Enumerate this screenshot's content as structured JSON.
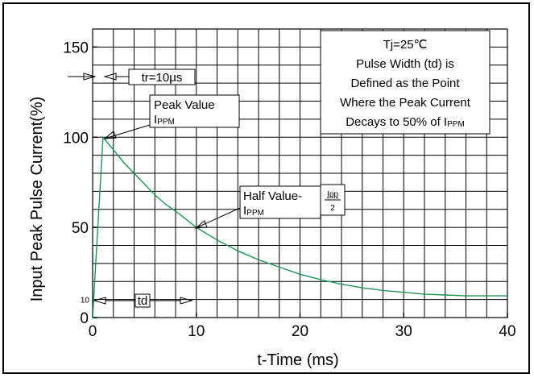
{
  "chart_data": {
    "type": "line",
    "title": "",
    "xlabel": "t-Time (ms)",
    "ylabel": "Input Peak Pulse Current(%)",
    "xlim": [
      0,
      40
    ],
    "ylim": [
      0,
      160
    ],
    "x_ticks": [
      0,
      10,
      20,
      30,
      40
    ],
    "x_tick_labels": [
      "0",
      "10",
      "20",
      "30",
      "40"
    ],
    "y_ticks": [
      0,
      50,
      100,
      150
    ],
    "y_tick_labels": [
      "0",
      "50",
      "100",
      "150"
    ],
    "y_extra_tick": {
      "value": 10,
      "label": "10"
    },
    "grid": true,
    "grid_minor_x_step": 2,
    "grid_minor_y_step": 10,
    "series": [
      {
        "color": "#1a9850",
        "x": [
          0,
          1,
          2,
          3,
          4,
          5,
          6,
          7,
          8,
          10,
          12,
          14,
          16,
          18,
          20,
          22,
          24,
          26,
          28,
          30,
          32,
          34,
          36,
          38,
          40
        ],
        "values": [
          0,
          100,
          93,
          86,
          80,
          74,
          68,
          63,
          59,
          50,
          43,
          37,
          32,
          28,
          24,
          21,
          18.5,
          16.5,
          15,
          14,
          13,
          12.5,
          12,
          12,
          12
        ]
      }
    ],
    "annotations": {
      "tr_label": "tr=10μs",
      "peak_line1": "Peak Value",
      "peak_line2_main": "I",
      "peak_line2_sub": "PPM",
      "half_line1": "Half Value-",
      "half_line2_main": "I",
      "half_line2_sub": "PPM",
      "half_fraction_num": "Ipp",
      "half_fraction_den": "2",
      "td_label": "td",
      "note_lines": [
        "Tj=25℃",
        "Pulse Width (td) is",
        "Defined as the Point",
        "Where the Peak Current"
      ],
      "note_last_main": "Decays to 50% of I",
      "note_last_sub": "PPM"
    }
  }
}
